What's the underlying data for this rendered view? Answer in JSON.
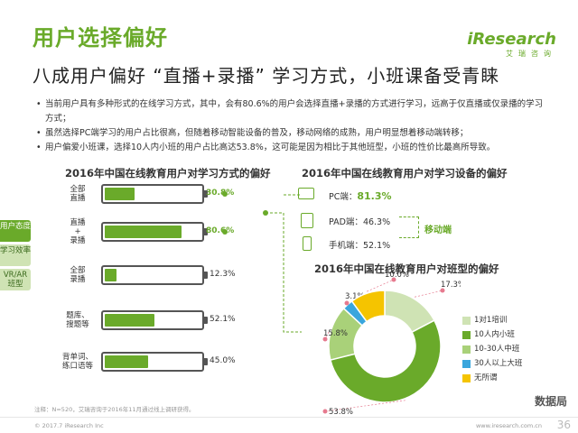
{
  "header": {
    "title": "用户选择偏好",
    "subtitle": "八成用户偏好 “直播+录播” 学习方式，小班课备受青睐",
    "logo_brand": "iResearch",
    "logo_sub": "艾瑞咨询"
  },
  "bullets": [
    "当前用户具有多种形式的在线学习方式，其中，会有80.6%的用户会选择直播+录播的方式进行学习，远高于仅直播或仅录播的学习方式；",
    "虽然选择PC端学习的用户占比很高，但随着移动智能设备的普及，移动网络的成熟，用户明显想着移动端转移；",
    "用户偏爱小班课，选择10人内小班的用户占比高达53.8%，这可能是因为相比于其他班型，小班的性价比最高所导致。"
  ],
  "side_tabs": [
    "用户态度",
    "学习效率",
    "VR/AR班型"
  ],
  "colors": {
    "accent": "#6aaa2a",
    "light": "#cfe3b4",
    "blue": "#3aa6dd",
    "yellow": "#f5c400",
    "mid": "#8cc63f"
  },
  "chart_data": [
    {
      "type": "bar",
      "title": "2016年中国在线教育用户对学习方式的偏好",
      "categories": [
        "全部直播",
        "直播+录播",
        "全部录播",
        "题库、搜题等",
        "背单词、练口语等"
      ],
      "category_lines": [
        [
          "全部",
          "直播"
        ],
        [
          "直播",
          "+",
          "录播"
        ],
        [
          "全部",
          "录播"
        ],
        [
          "题库、",
          "搜题等"
        ],
        [
          "背单词、",
          "练口语等"
        ]
      ],
      "values": [
        30.8,
        80.6,
        12.3,
        52.1,
        45.0
      ],
      "labels": [
        "30.8%",
        "80.6%",
        "12.3%",
        "52.1%",
        "45.0%"
      ],
      "ylim": [
        0,
        100
      ]
    },
    {
      "type": "bar",
      "title": "2016年中国在线教育用户对学习设备的偏好",
      "categories": [
        "PC端",
        "PAD端",
        "手机端"
      ],
      "values": [
        81.3,
        46.3,
        52.1
      ],
      "labels": [
        "81.3%",
        "46.3%",
        "52.1%"
      ],
      "annotation": "移动端"
    },
    {
      "type": "pie",
      "title": "2016年中国在线教育用户对班型的偏好",
      "categories": [
        "1对1培训",
        "10人内小班",
        "10-30人中班",
        "30人以上大班",
        "无所谓"
      ],
      "values": [
        17.3,
        53.8,
        15.8,
        3.1,
        10.0
      ],
      "labels": [
        "17.3%",
        "53.8%",
        "15.8%",
        "3.1%",
        "10.0%"
      ],
      "colors": [
        "#cfe3b4",
        "#6aaa2a",
        "#a9d179",
        "#3aa6dd",
        "#f5c400"
      ]
    }
  ],
  "footnote": "注释：N=520，艾瑞咨询于2016年11月通过线上调研获得。",
  "footer": {
    "copyright": "© 2017.7 iResearch Inc",
    "url": "www.iresearch.com.cn",
    "page": "36",
    "watermark": "数据局"
  }
}
